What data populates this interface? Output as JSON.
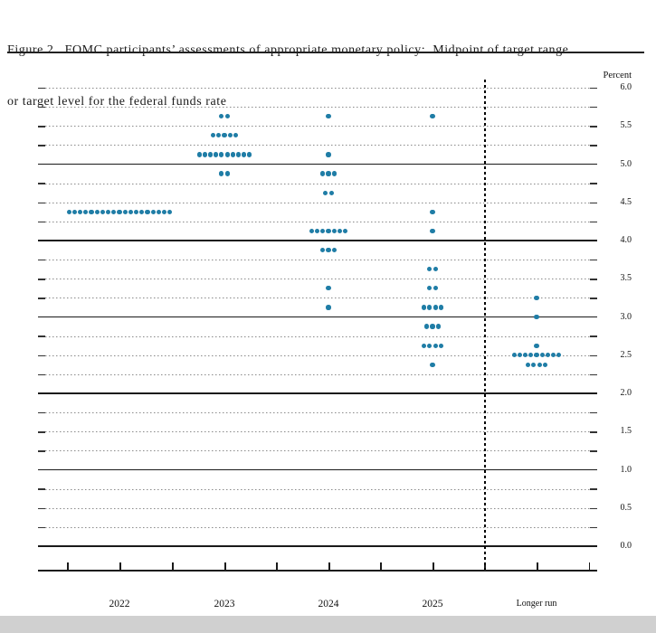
{
  "figure": {
    "title_line1": "Figure 2.  FOMC participants’ assessments of appropriate monetary policy:  Midpoint of target range",
    "title_line2": "or target level for the federal funds rate"
  },
  "chart_data": {
    "type": "scatter",
    "title": "FOMC participants’ assessments of appropriate monetary policy: Midpoint of target range or target level for the federal funds rate",
    "y_axis_title": "Percent",
    "ylim": [
      0.0,
      6.0
    ],
    "y_tick_interval": 0.5,
    "gridline_interval": 0.25,
    "solid_gridlines": [
      0,
      1,
      2,
      3,
      4,
      5
    ],
    "y_tick_labels": [
      "6.0",
      "5.5",
      "5.0",
      "4.5",
      "4.0",
      "3.5",
      "3.0",
      "2.5",
      "2.0",
      "1.5",
      "1.0",
      "0.5",
      "0.0"
    ],
    "categories": [
      "2022",
      "2023",
      "2024",
      "2025",
      "Longer run"
    ],
    "divider_before_category": "Longer run",
    "legend": "none",
    "grid": "on",
    "unit": "percent, midpoint of target range or target level",
    "dot_color": "#1f7da6",
    "series": [
      {
        "category": "2022",
        "dots": [
          {
            "rate": 4.375,
            "count": 19
          }
        ]
      },
      {
        "category": "2023",
        "dots": [
          {
            "rate": 5.625,
            "count": 2
          },
          {
            "rate": 5.375,
            "count": 5
          },
          {
            "rate": 5.125,
            "count": 10
          },
          {
            "rate": 4.875,
            "count": 2
          }
        ]
      },
      {
        "category": "2024",
        "dots": [
          {
            "rate": 5.625,
            "count": 1
          },
          {
            "rate": 5.125,
            "count": 1
          },
          {
            "rate": 4.875,
            "count": 3
          },
          {
            "rate": 4.625,
            "count": 2
          },
          {
            "rate": 4.125,
            "count": 7
          },
          {
            "rate": 3.875,
            "count": 3
          },
          {
            "rate": 3.375,
            "count": 1
          },
          {
            "rate": 3.125,
            "count": 1
          }
        ]
      },
      {
        "category": "2025",
        "dots": [
          {
            "rate": 5.625,
            "count": 1
          },
          {
            "rate": 4.375,
            "count": 1
          },
          {
            "rate": 4.125,
            "count": 1
          },
          {
            "rate": 3.625,
            "count": 2
          },
          {
            "rate": 3.375,
            "count": 2
          },
          {
            "rate": 3.125,
            "count": 4
          },
          {
            "rate": 2.875,
            "count": 3
          },
          {
            "rate": 2.625,
            "count": 4
          },
          {
            "rate": 2.375,
            "count": 1
          }
        ]
      },
      {
        "category": "Longer run",
        "dots": [
          {
            "rate": 3.25,
            "count": 1
          },
          {
            "rate": 3.0,
            "count": 1
          },
          {
            "rate": 2.625,
            "count": 1
          },
          {
            "rate": 2.5,
            "count": 9
          },
          {
            "rate": 2.375,
            "count": 4
          }
        ]
      }
    ]
  }
}
